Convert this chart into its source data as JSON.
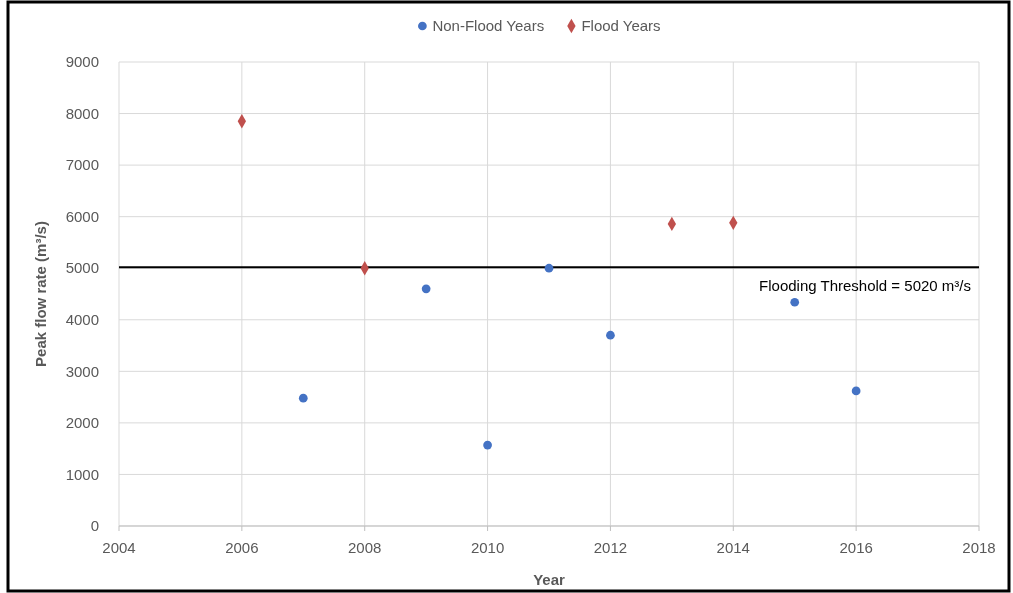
{
  "chart_data": {
    "type": "scatter",
    "xlabel": "Year",
    "ylabel": "Peak flow rate (m³/s)",
    "xlim": [
      2004,
      2018
    ],
    "xticks": [
      2004,
      2006,
      2008,
      2010,
      2012,
      2014,
      2016,
      2018
    ],
    "ylim": [
      0,
      9000
    ],
    "yticks": [
      0,
      1000,
      2000,
      3000,
      4000,
      5000,
      6000,
      7000,
      8000,
      9000
    ],
    "grid": true,
    "legend": "top",
    "series": [
      {
        "name": "Non-Flood Years",
        "color": "#4472c4",
        "marker": "circle",
        "x": [
          2007,
          2009,
          2010,
          2011,
          2012,
          2015,
          2016
        ],
        "values": [
          2480,
          4600,
          1570,
          5000,
          3700,
          4340,
          2620
        ]
      },
      {
        "name": "Flood Years",
        "color": "#c0504d",
        "marker": "diamond",
        "x": [
          2006,
          2008,
          2013,
          2014
        ],
        "values": [
          7850,
          5000,
          5860,
          5880
        ]
      }
    ],
    "ref_lines": [
      {
        "axis": "y",
        "value": 5020,
        "label": "Flooding Threshold = 5020 m³/s",
        "color": "#000000"
      }
    ]
  }
}
